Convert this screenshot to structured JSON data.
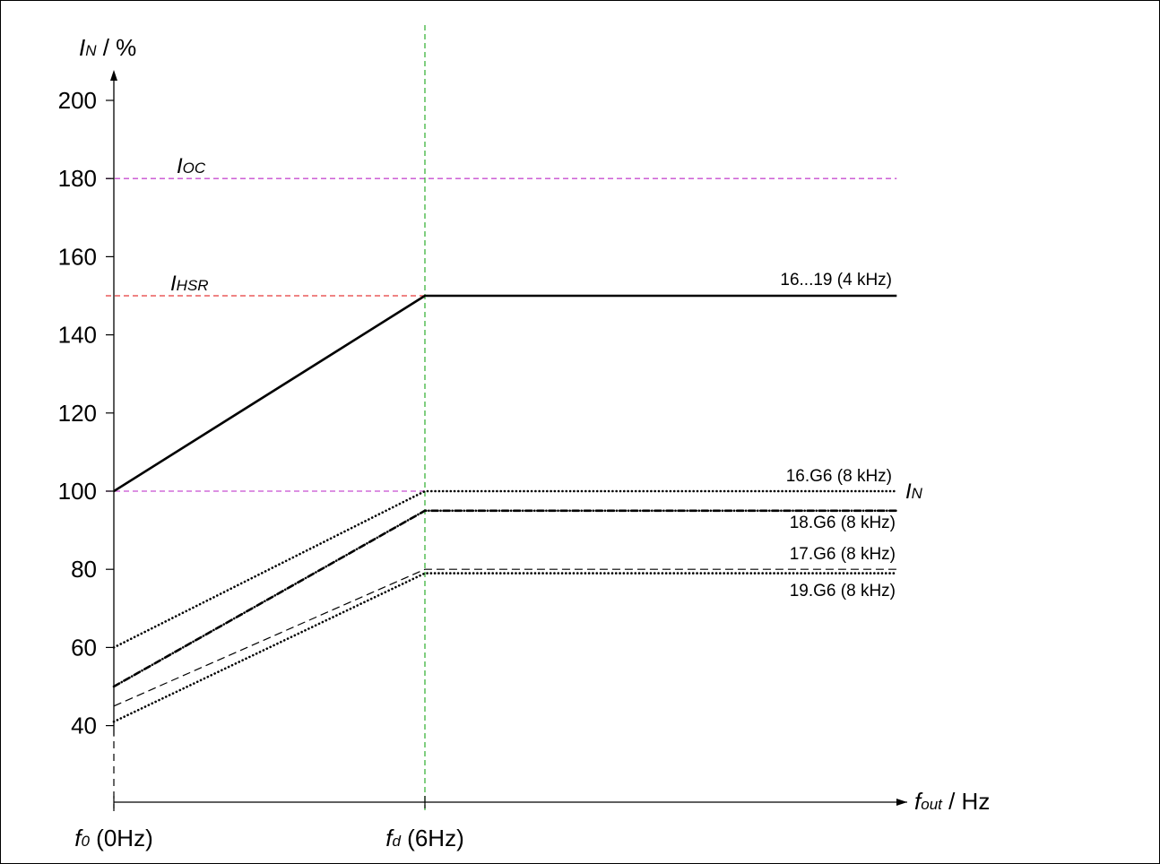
{
  "chart_data": {
    "type": "line",
    "ylabel": {
      "sym": "I",
      "sub": "N",
      "rest": " / %"
    },
    "xlabel": {
      "sym": "f",
      "sub": "out",
      "rest": " / Hz"
    },
    "ylim": [
      20,
      210
    ],
    "yticks": [
      40,
      60,
      80,
      100,
      120,
      140,
      160,
      180,
      200
    ],
    "xticks": [
      {
        "value": 0,
        "sym": "f",
        "sub": "0",
        "rest": " (0Hz)"
      },
      {
        "value": 6,
        "sym": "f",
        "sub": "d",
        "rest": " (6Hz)"
      }
    ],
    "xlim": [
      0,
      15.1
    ],
    "reference_lines": [
      {
        "name": "I_OC",
        "sym": "I",
        "sub": "OC",
        "y": 180,
        "color": "#c84fd0"
      },
      {
        "name": "I_HSR",
        "sym": "I",
        "sub": "HSR",
        "y": 150,
        "color": "#e53b3b"
      },
      {
        "name": "I_N",
        "sym": "I",
        "sub": "N",
        "y": 100,
        "color": "#c84fd0"
      }
    ],
    "vertical_line": {
      "x": 6,
      "color": "#3cb43c"
    },
    "series": [
      {
        "name": "16...19 (4 kHz)",
        "x": [
          0,
          6,
          15.1
        ],
        "y": [
          100,
          150,
          150
        ],
        "style": "solid"
      },
      {
        "name": "16.G6 (8 kHz)",
        "x": [
          0,
          6,
          15.1
        ],
        "y": [
          60,
          100,
          100
        ],
        "style": "dotted"
      },
      {
        "name": "18.G6 (8 kHz)",
        "x": [
          0,
          6,
          15.1
        ],
        "y": [
          50,
          95,
          95
        ],
        "style": "dashdot"
      },
      {
        "name": "17.G6 (8 kHz)",
        "x": [
          0,
          6,
          15.1
        ],
        "y": [
          45,
          80,
          80
        ],
        "style": "dashed"
      },
      {
        "name": "19.G6 (8 kHz)",
        "x": [
          0,
          6,
          15.1
        ],
        "y": [
          41,
          79,
          79
        ],
        "style": "dotted"
      }
    ]
  }
}
